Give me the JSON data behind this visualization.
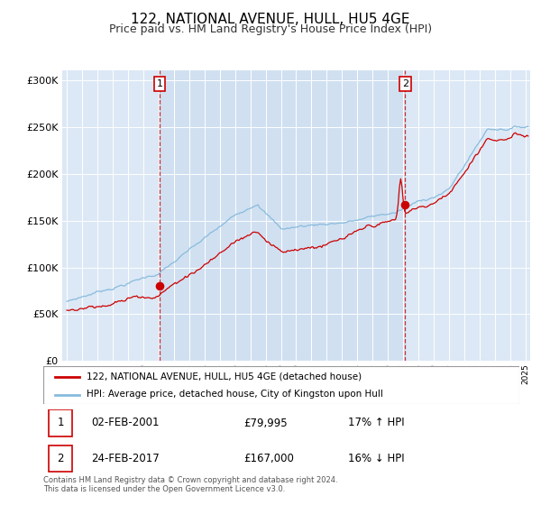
{
  "title": "122, NATIONAL AVENUE, HULL, HU5 4GE",
  "subtitle": "Price paid vs. HM Land Registry's House Price Index (HPI)",
  "title_fontsize": 11,
  "subtitle_fontsize": 9,
  "bg_color": "#ffffff",
  "plot_bg_color": "#dce8f5",
  "shade_color": "#ccddf0",
  "grid_color": "#cccccc",
  "red_color": "#cc0000",
  "blue_color": "#88bbdd",
  "marker_color": "#cc0000",
  "sale1_year": 2001.08,
  "sale1_price": 79995,
  "sale2_year": 2017.12,
  "sale2_price": 167000,
  "ylim_min": 0,
  "ylim_max": 310000,
  "xlim_min": 1994.7,
  "xlim_max": 2025.3,
  "legend_label_red": "122, NATIONAL AVENUE, HULL, HU5 4GE (detached house)",
  "legend_label_blue": "HPI: Average price, detached house, City of Kingston upon Hull",
  "annot1_box": "1",
  "annot1_date": "02-FEB-2001",
  "annot1_price": "£79,995",
  "annot1_hpi": "17% ↑ HPI",
  "annot2_box": "2",
  "annot2_date": "24-FEB-2017",
  "annot2_price": "£167,000",
  "annot2_hpi": "16% ↓ HPI",
  "footer": "Contains HM Land Registry data © Crown copyright and database right 2024.\nThis data is licensed under the Open Government Licence v3.0."
}
